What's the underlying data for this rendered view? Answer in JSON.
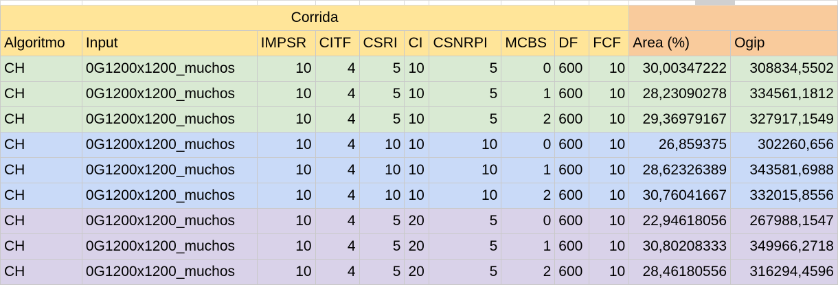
{
  "sheet": {
    "group_header": "Corrida",
    "columns": [
      "Algoritmo",
      "Input",
      "IMPSR",
      "CITF",
      "CSRI",
      "CI",
      "CSNRPI",
      "MCBS",
      "DF",
      "FCF",
      "Area (%)",
      "Ogip"
    ],
    "rows": [
      [
        "CH",
        "0G1200x1200_muchos",
        "10",
        "4",
        "5",
        "10",
        "5",
        "0",
        "600",
        "10",
        "30,00347222",
        "308834,5502"
      ],
      [
        "CH",
        "0G1200x1200_muchos",
        "10",
        "4",
        "5",
        "10",
        "5",
        "1",
        "600",
        "10",
        "28,23090278",
        "334561,1812"
      ],
      [
        "CH",
        "0G1200x1200_muchos",
        "10",
        "4",
        "5",
        "10",
        "5",
        "2",
        "600",
        "10",
        "29,36979167",
        "327917,1549"
      ],
      [
        "CH",
        "0G1200x1200_muchos",
        "10",
        "4",
        "10",
        "10",
        "10",
        "0",
        "600",
        "10",
        "26,859375",
        "302260,656"
      ],
      [
        "CH",
        "0G1200x1200_muchos",
        "10",
        "4",
        "10",
        "10",
        "10",
        "1",
        "600",
        "10",
        "28,62326389",
        "343581,6988"
      ],
      [
        "CH",
        "0G1200x1200_muchos",
        "10",
        "4",
        "10",
        "10",
        "10",
        "2",
        "600",
        "10",
        "30,76041667",
        "332015,8556"
      ],
      [
        "CH",
        "0G1200x1200_muchos",
        "10",
        "4",
        "5",
        "20",
        "5",
        "0",
        "600",
        "10",
        "22,94618056",
        "267988,1547"
      ],
      [
        "CH",
        "0G1200x1200_muchos",
        "10",
        "4",
        "5",
        "20",
        "5",
        "1",
        "600",
        "10",
        "30,80208333",
        "349966,2718"
      ],
      [
        "CH",
        "0G1200x1200_muchos",
        "10",
        "4",
        "5",
        "20",
        "5",
        "2",
        "600",
        "10",
        "28,46180556",
        "316294,4596"
      ]
    ]
  },
  "colors": {
    "header_yellow": "#ffe599",
    "header_orange": "#f9cb9c",
    "group_green": "#d9ead3",
    "group_blue": "#c9daf8",
    "group_purple": "#d9d2e9",
    "grid": "#c9c9c9"
  }
}
